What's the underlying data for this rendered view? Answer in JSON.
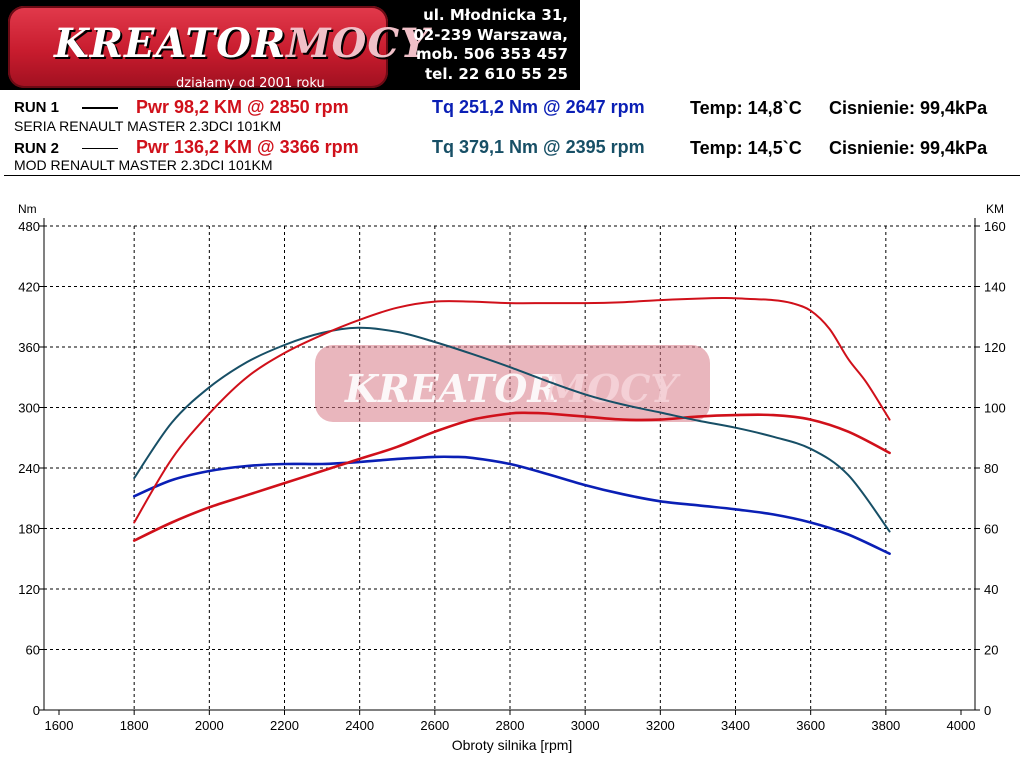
{
  "header": {
    "logo_text_main": "KREATOR",
    "logo_text_accent": "MOCY",
    "logo_tagline": "działamy od 2001 roku",
    "address_lines": [
      "ul. Młodnicka 31,",
      "02-239  Warszawa,",
      "mob.  506 353 457",
      "tel.  22 610 55 25"
    ]
  },
  "runs": [
    {
      "label": "RUN 1",
      "power": "Pwr  98,2 KM @ 2850 rpm",
      "torque": "Tq 251,2 Nm @ 2647 rpm",
      "temp": "Temp: 14,8`C",
      "pressure": "Cisnienie: 99,4kPa",
      "desc": "SERIA RENAULT MASTER 2.3DCI 101KM"
    },
    {
      "label": "RUN 2",
      "power": "Pwr  136,2 KM @ 3366 rpm",
      "torque": "Tq 379,1 Nm @ 2395 rpm",
      "temp": "Temp: 14,5`C",
      "pressure": "Cisnienie: 99,4kPa",
      "desc": "MOD RENAULT MASTER 2.3DCI 101KM"
    }
  ],
  "colors": {
    "power_red": "#d0101a",
    "torque_blue": "#0a1fb5",
    "torque_teal": "#174f66"
  },
  "chart_data": {
    "type": "line",
    "xlabel": "Obroty silnika [rpm]",
    "ylabel_left": "Nm",
    "ylabel_right": "KM",
    "xlim": [
      1600,
      4000
    ],
    "ylim_left": [
      0,
      480
    ],
    "ylim_right": [
      0,
      160
    ],
    "x_ticks": [
      1600,
      1800,
      2000,
      2200,
      2400,
      2600,
      2800,
      3000,
      3200,
      3400,
      3600,
      3800,
      4000
    ],
    "y_ticks_left": [
      0,
      60,
      120,
      180,
      240,
      300,
      360,
      420,
      480
    ],
    "y_ticks_right": [
      0,
      20,
      40,
      60,
      80,
      100,
      120,
      140,
      160
    ],
    "grid": true,
    "series": [
      {
        "run": "RUN 1",
        "kind": "torque",
        "axis": "left",
        "color": "#0a1fb5",
        "x": [
          1800,
          1900,
          2000,
          2100,
          2200,
          2300,
          2400,
          2500,
          2600,
          2650,
          2700,
          2800,
          2900,
          3000,
          3100,
          3200,
          3300,
          3400,
          3500,
          3600,
          3700,
          3810
        ],
        "y": [
          212,
          228,
          237,
          242,
          244,
          244,
          246,
          249,
          251,
          251,
          250,
          244,
          234,
          223,
          214,
          207,
          203,
          199,
          194,
          186,
          174,
          155
        ]
      },
      {
        "run": "RUN 1",
        "kind": "power",
        "axis": "right",
        "color": "#d0101a",
        "x": [
          1800,
          1900,
          2000,
          2100,
          2200,
          2300,
          2400,
          2500,
          2600,
          2700,
          2800,
          2850,
          2900,
          3000,
          3100,
          3200,
          3300,
          3400,
          3500,
          3600,
          3700,
          3810
        ],
        "y": [
          56,
          62,
          67,
          71,
          75,
          79,
          83,
          87,
          92,
          96,
          98,
          98.2,
          98,
          97,
          96,
          96,
          97,
          97.5,
          97.5,
          96,
          92,
          85
        ]
      },
      {
        "run": "RUN 2",
        "kind": "torque",
        "axis": "left",
        "color": "#174f66",
        "x": [
          1800,
          1900,
          2000,
          2100,
          2200,
          2300,
          2395,
          2500,
          2600,
          2700,
          2800,
          2900,
          3000,
          3100,
          3200,
          3300,
          3400,
          3500,
          3600,
          3700,
          3810
        ],
        "y": [
          230,
          285,
          320,
          345,
          362,
          374,
          379,
          375,
          365,
          353,
          340,
          326,
          313,
          303,
          295,
          287,
          280,
          271,
          259,
          233,
          177
        ]
      },
      {
        "run": "RUN 2",
        "kind": "power",
        "axis": "right",
        "color": "#d0101a",
        "x": [
          1800,
          1900,
          2000,
          2100,
          2200,
          2300,
          2400,
          2500,
          2600,
          2700,
          2800,
          2900,
          3000,
          3100,
          3200,
          3300,
          3366,
          3400,
          3500,
          3550,
          3600,
          3650,
          3700,
          3750,
          3810
        ],
        "y": [
          62,
          83,
          98,
          110,
          118,
          124,
          129,
          133,
          135,
          135,
          134.5,
          134.5,
          134.5,
          134.8,
          135.5,
          136,
          136.2,
          136.1,
          135.5,
          134.5,
          132,
          126,
          116,
          108,
          96
        ]
      }
    ]
  }
}
